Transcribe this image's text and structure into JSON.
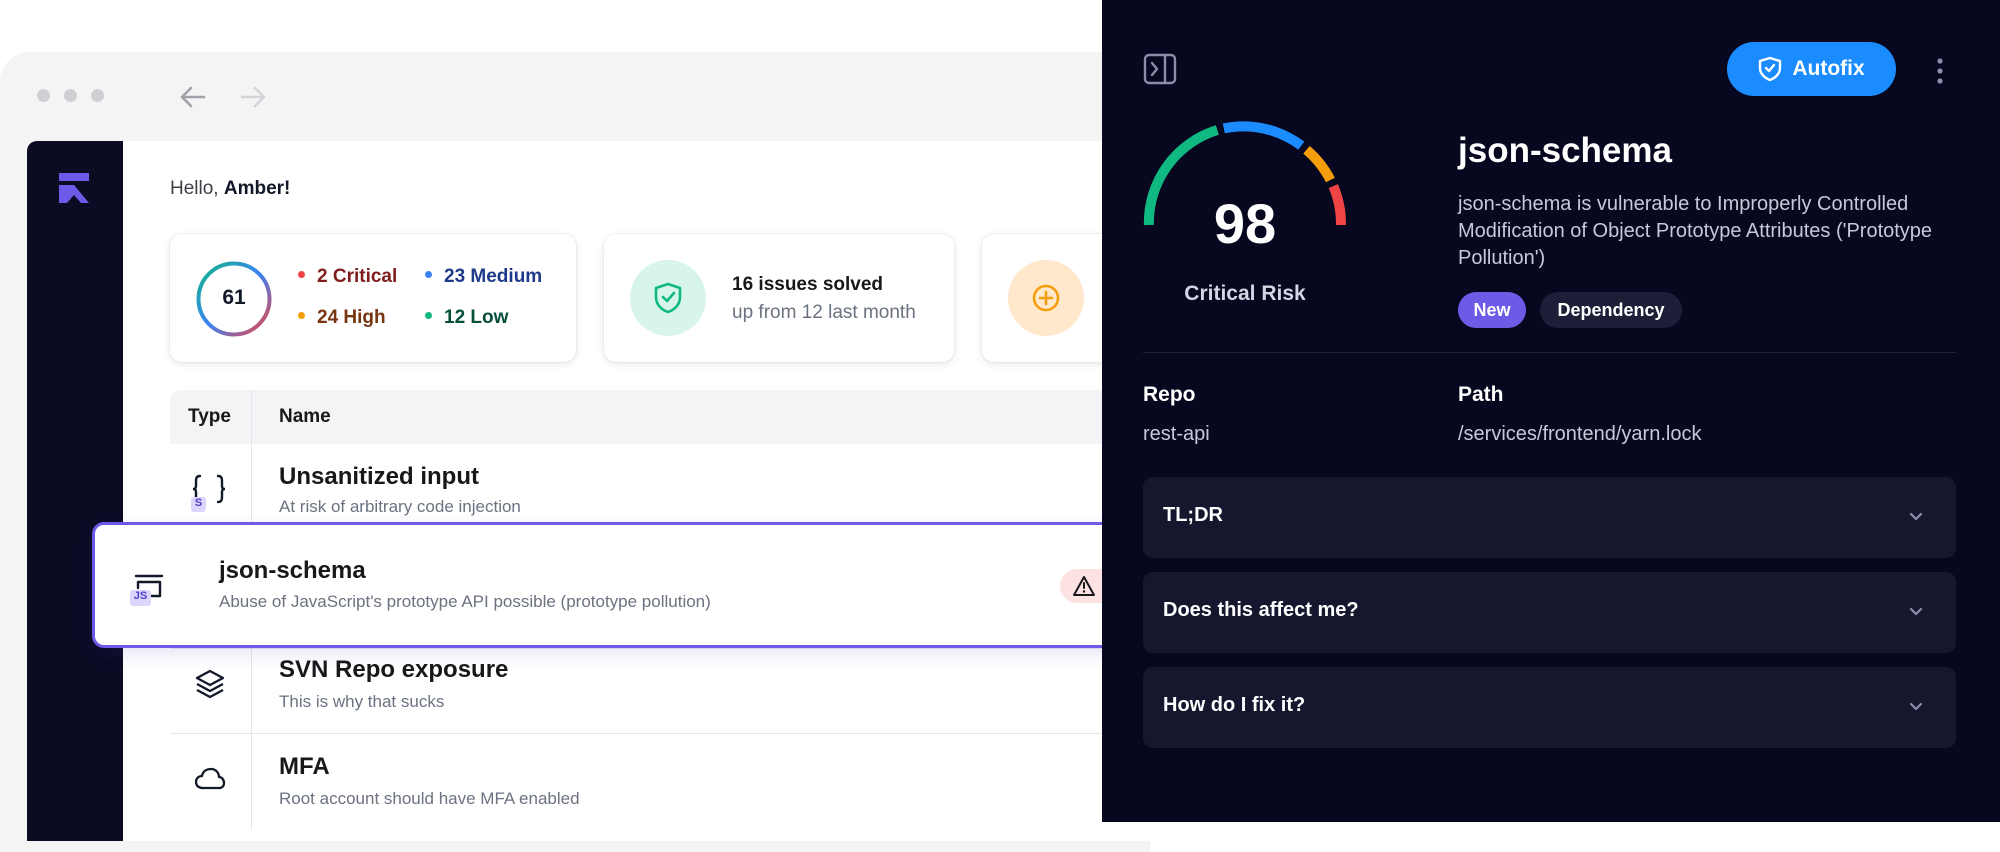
{
  "greeting": {
    "prefix": "Hello, ",
    "name": "Amber!"
  },
  "summary": {
    "score": "61",
    "severities": [
      {
        "label": "2 Critical",
        "color": "#ef4444",
        "text_color": "#7f1d1d"
      },
      {
        "label": "23 Medium",
        "color": "#3b82f6",
        "text_color": "#1e3a8a"
      },
      {
        "label": "24 High",
        "color": "#f59e0b",
        "text_color": "#78350f"
      },
      {
        "label": "12 Low",
        "color": "#10b981",
        "text_color": "#064e3b"
      }
    ],
    "solved_title": "16 issues solved",
    "solved_sub": "up from 12 last month"
  },
  "table": {
    "headers": {
      "type": "Type",
      "name": "Name"
    },
    "rows": [
      {
        "icon": "code-braces-icon",
        "badge": "S",
        "title": "Unsanitized input",
        "subtitle": "At risk of arbitrary code injection"
      },
      {
        "icon": "package-icon",
        "badge": "JS",
        "title": "json-schema",
        "subtitle": "Abuse of JavaScript's prototype API possible (prototype pollution)"
      },
      {
        "icon": "layers-icon",
        "title": "SVN Repo exposure",
        "subtitle": "This is why that sucks"
      },
      {
        "icon": "cloud-icon",
        "title": "MFA",
        "subtitle": "Root account should have MFA enabled"
      }
    ]
  },
  "panel": {
    "autofix_label": "Autofix",
    "risk_score": "98",
    "risk_label": "Critical Risk",
    "title": "json-schema",
    "description": "json-schema is vulnerable to Improperly Controlled Modification of Object Prototype Attributes ('Prototype Pollution')",
    "badges": [
      "New",
      "Dependency"
    ],
    "repo_label": "Repo",
    "repo_value": "rest-api",
    "path_label": "Path",
    "path_value": "/services/frontend/yarn.lock",
    "accordions": [
      "TL;DR",
      "Does this affect me?",
      "How do I fix it?"
    ]
  },
  "colors": {
    "accent": "#6d5ae6",
    "autofix": "#1a8cff",
    "panel_bg": "#07071f",
    "gauge": [
      "#10b981",
      "#1a8cff",
      "#f59e0b",
      "#ef4444"
    ]
  }
}
